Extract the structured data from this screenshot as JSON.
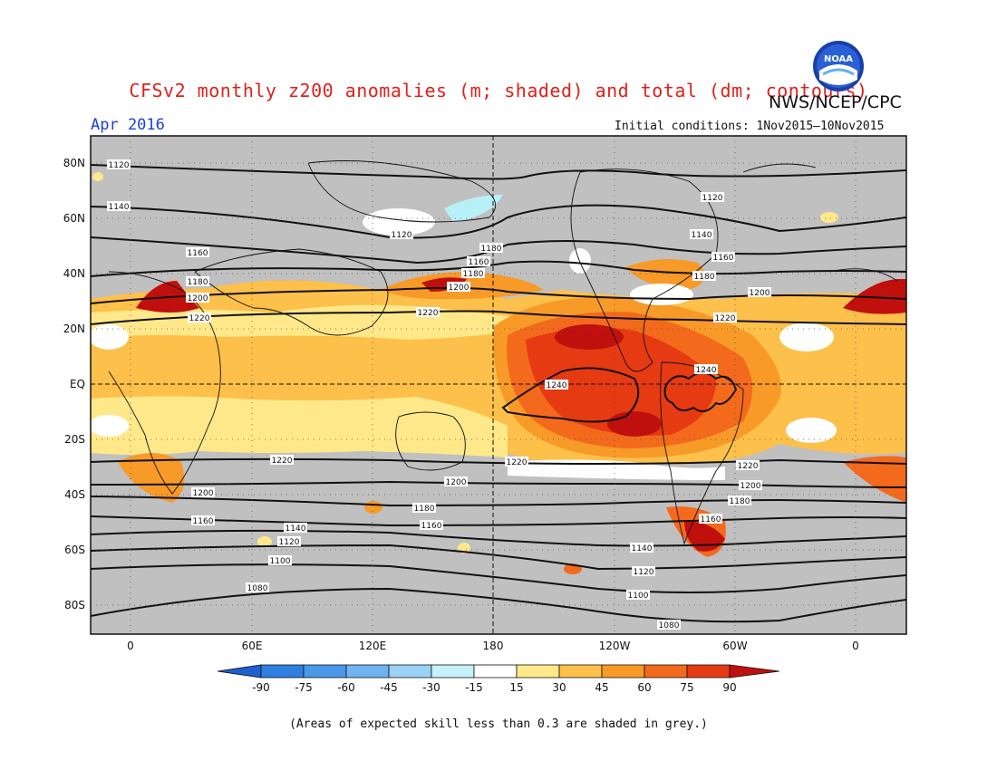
{
  "header": {
    "title": "CFSv2 monthly z200 anomalies (m; shaded) and total (dm; contours)",
    "agency": "NWS/NCEP/CPC",
    "month": "Apr 2016",
    "initial_conditions": "Initial conditions: 1Nov2015–10Nov2015",
    "logo_text": "NOAA"
  },
  "map": {
    "lat_labels": [
      "80N",
      "60N",
      "40N",
      "20N",
      "EQ",
      "20S",
      "40S",
      "60S",
      "80S"
    ],
    "lon_labels": [
      "0",
      "60E",
      "120E",
      "180",
      "120W",
      "60W",
      "0"
    ],
    "contours": [
      {
        "value": 1120,
        "label": "1120"
      },
      {
        "value": 1140,
        "label": "1140"
      },
      {
        "value": 1160,
        "label": "1160"
      },
      {
        "value": 1180,
        "label": "1180"
      },
      {
        "value": 1200,
        "label": "1200"
      },
      {
        "value": 1220,
        "label": "1220"
      },
      {
        "value": 1240,
        "label": "1240"
      },
      {
        "value": 1100,
        "label": "1100"
      },
      {
        "value": 1080,
        "label": "1080"
      }
    ],
    "colors": {
      "grey_skill": "#c0c0c0",
      "pos15": "#ffe88a",
      "pos30": "#fdc04a",
      "pos45": "#f79a28",
      "pos60": "#f36a1c",
      "pos75": "#e63a12",
      "pos90": "#c0100e",
      "neg15": "#b8f0f8",
      "white": "#ffffff"
    }
  },
  "colorbar": {
    "labels": [
      "-90",
      "-75",
      "-60",
      "-45",
      "-30",
      "-15",
      "15",
      "30",
      "45",
      "60",
      "75",
      "90"
    ],
    "colors": [
      "#1f5fd0",
      "#2f7fe0",
      "#4a98ea",
      "#6fb4f0",
      "#9ad2f6",
      "#c6f0fa",
      "#ffffff",
      "#ffe88a",
      "#fdc04a",
      "#f79a28",
      "#f36a1c",
      "#e63a12",
      "#c0100e"
    ]
  },
  "footnote": "(Areas of expected skill less than 0.3 are shaded in grey.)"
}
